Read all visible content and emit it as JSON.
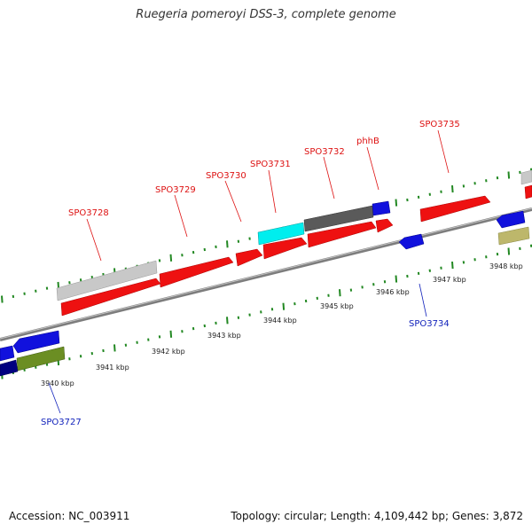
{
  "title": "Ruegeria pomeroyi DSS-3, complete genome",
  "footer": {
    "accession": "Accession: NC_003911",
    "summary": "Topology: circular; Length: 4,109,442 bp; Genes: 3,872"
  },
  "colors": {
    "backbone": "#888888",
    "tick": "#228822",
    "red_gene": "#ee1111",
    "blue_gene": "#1111dd",
    "cyan_gene": "#00eeee",
    "dark_gray_gene": "#555555",
    "light_gray_gene": "#c8c8c8",
    "olive_gene": "#6b8e23",
    "navy_gene": "#000080",
    "tan_gene": "#bdb76b",
    "red_label": "#dd1111",
    "blue_label": "#1122bb"
  },
  "ticks": [
    "3940 kbp",
    "3941 kbp",
    "3942 kbp",
    "3943 kbp",
    "3944 kbp",
    "3945 kbp",
    "3946 kbp",
    "3947 kbp",
    "3948 kbp"
  ],
  "labels_forward": [
    "SPO3728",
    "SPO3729",
    "SPO3730",
    "SPO3731",
    "SPO3732",
    "phhB",
    "SPO3735"
  ],
  "labels_reverse": [
    "SPO3727",
    "SPO3734"
  ]
}
